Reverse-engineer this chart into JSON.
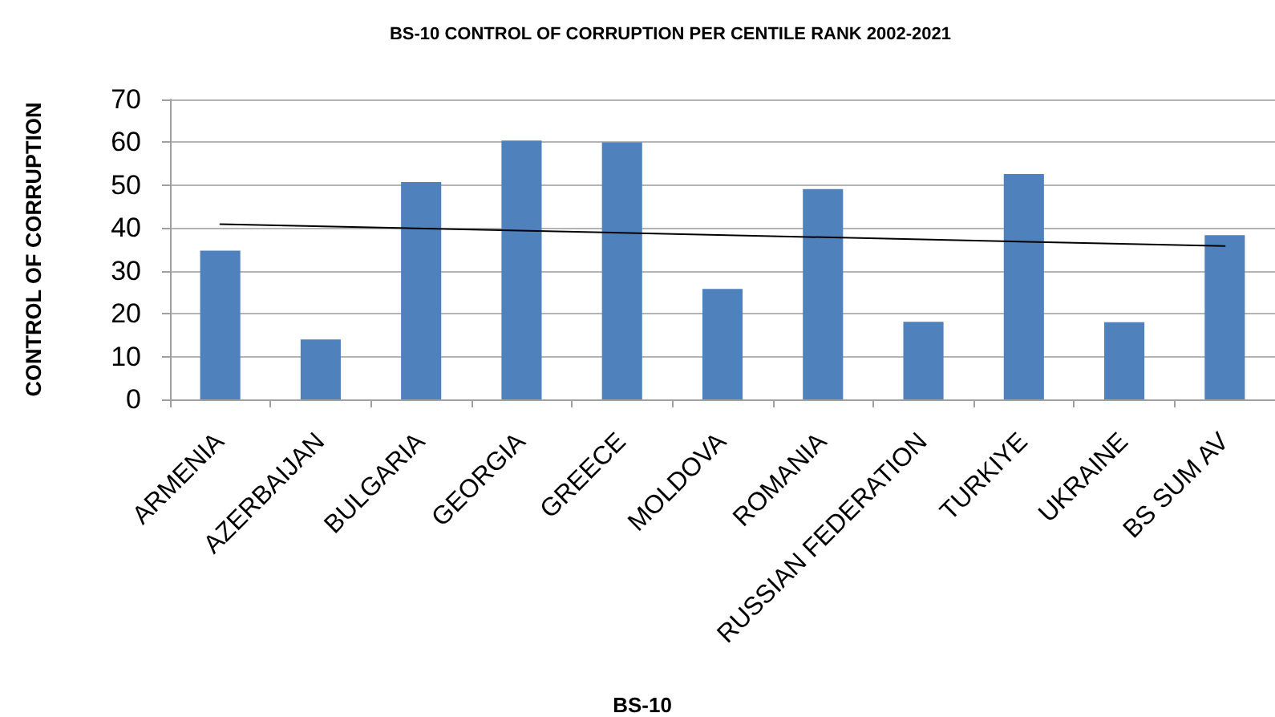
{
  "chart_data": {
    "type": "bar",
    "title": "BS-10 CONTROL OF CORRUPTION PER CENTILE RANK 2002-2021",
    "xlabel": "BS-10",
    "ylabel": "CONTROL OF CORRUPTION",
    "categories": [
      "ARMENIA",
      "AZERBAIJAN",
      "BULGARIA",
      "GEORGIA",
      "GREECE",
      "MOLDOVA",
      "ROMANIA",
      "RUSSIAN FEDERATION",
      "TURKIYE",
      "UKRAINE",
      "BS SUM AV"
    ],
    "series": [
      {
        "color": "#4f81bd",
        "values": [
          34.7,
          14.0,
          50.7,
          60.4,
          60.0,
          25.8,
          49.1,
          18.1,
          52.6,
          18.0,
          38.3
        ]
      },
      {
        "type": "line",
        "color": "#000000",
        "x": [
          "ARMENIA",
          "BS SUM AV"
        ],
        "values": [
          40.9,
          35.8
        ],
        "marker": "none",
        "line_style": "solid"
      }
    ],
    "ylim": [
      0,
      70
    ],
    "yticks": [
      0,
      10,
      20,
      30,
      40,
      50,
      60,
      70
    ],
    "grid": "y"
  }
}
